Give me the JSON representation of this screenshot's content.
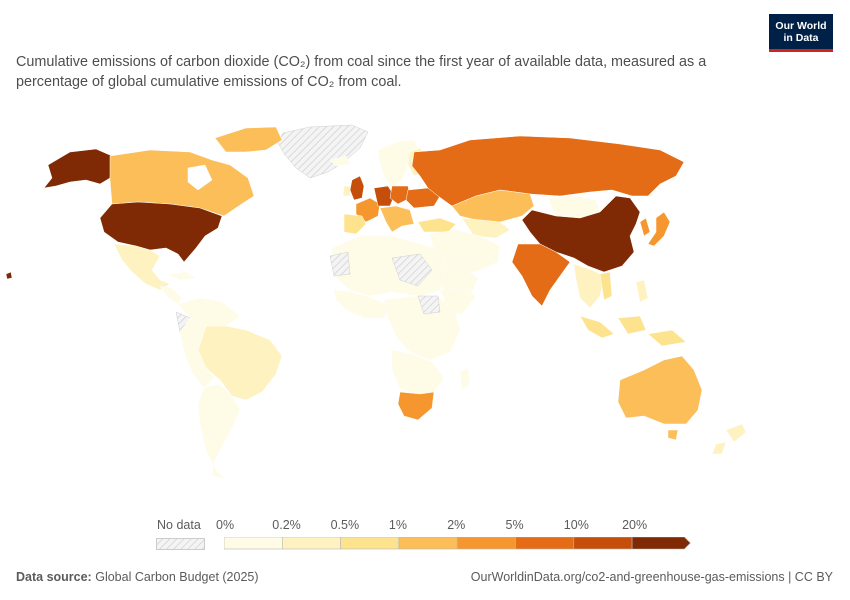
{
  "logo": {
    "line1": "Our World",
    "line2": "in Data"
  },
  "title": "Cumulative emissions of carbon dioxide (CO₂) from coal since the first year of available data, measured as a percentage of global cumulative emissions of CO₂ from coal.",
  "legend": {
    "no_data_label": "No data",
    "bins": [
      "0%",
      "0.2%",
      "0.5%",
      "1%",
      "2%",
      "5%",
      "10%",
      "20%"
    ],
    "colors": [
      "#fefbe6",
      "#fef2c0",
      "#fde38e",
      "#fbbe58",
      "#f5962f",
      "#e46c16",
      "#c54e0b",
      "#7f2a04"
    ]
  },
  "footer": {
    "source_label": "Data source:",
    "source_value": "Global Carbon Budget (2025)",
    "url_license": "OurWorldinData.org/co2-and-greenhouse-gas-emissions | CC BY"
  },
  "regions": [
    {
      "name": "United States",
      "bin": 7
    },
    {
      "name": "China",
      "bin": 7
    },
    {
      "name": "Russia",
      "bin": 5
    },
    {
      "name": "Germany",
      "bin": 5
    },
    {
      "name": "United Kingdom",
      "bin": 5
    },
    {
      "name": "India",
      "bin": 5
    },
    {
      "name": "Poland",
      "bin": 4
    },
    {
      "name": "Ukraine",
      "bin": 5
    },
    {
      "name": "Japan",
      "bin": 4
    },
    {
      "name": "South Africa",
      "bin": 4
    },
    {
      "name": "France",
      "bin": 4
    },
    {
      "name": "Canada",
      "bin": 3
    },
    {
      "name": "Kazakhstan",
      "bin": 3
    },
    {
      "name": "Australia",
      "bin": 3
    },
    {
      "name": "South Korea",
      "bin": 3
    },
    {
      "name": "Alaska (US)",
      "bin": 7
    },
    {
      "name": "Turkey",
      "bin": 2
    },
    {
      "name": "Spain",
      "bin": 2
    },
    {
      "name": "Indonesia",
      "bin": 2
    },
    {
      "name": "Brazil",
      "bin": 1
    },
    {
      "name": "Mexico",
      "bin": 1
    },
    {
      "name": "Iran",
      "bin": 1
    },
    {
      "name": "Vietnam",
      "bin": 2
    },
    {
      "name": "Mongolia",
      "bin": 0
    },
    {
      "name": "Greenland",
      "bin": -1
    },
    {
      "name": "Western Sahara",
      "bin": -1
    },
    {
      "name": "South Sudan",
      "bin": -1
    }
  ]
}
